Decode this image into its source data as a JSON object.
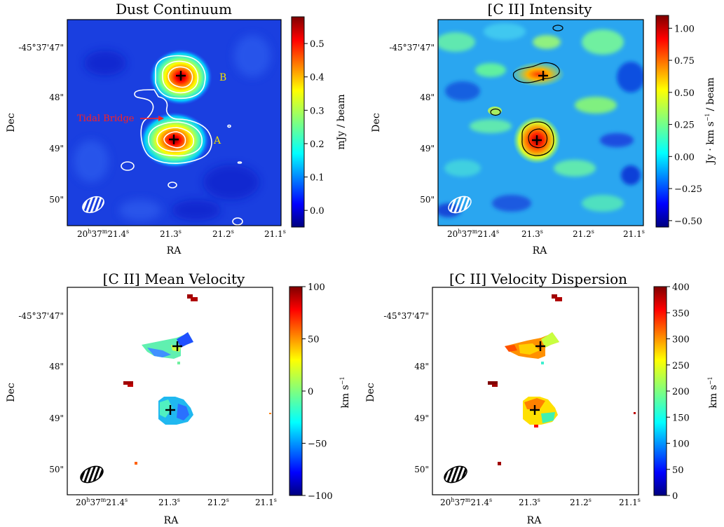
{
  "chart_data": [
    {
      "type": "heatmap",
      "title": "Dust Continuum",
      "xlabel": "RA",
      "ylabel": "Dec",
      "cbar_label": "mJy / beam",
      "cbar_range": [
        -0.05,
        0.58
      ],
      "cbar_ticks": [
        "0.5",
        "0.4",
        "0.3",
        "0.2",
        "0.1",
        "0.0"
      ],
      "cbar_tick_values": [
        0.5,
        0.4,
        0.3,
        0.2,
        0.1,
        0.0
      ],
      "dec_ticks": [
        "-45°37'47\"",
        "48\"",
        "49\"",
        "50\""
      ],
      "ra_ticks": [
        {
          "h": "20",
          "hs": "h",
          "m": "37",
          "ms": "m",
          "s": "21.4",
          "ss": "s"
        },
        {
          "s": "21.3",
          "ss": "s"
        },
        {
          "s": "21.2",
          "ss": "s"
        },
        {
          "s": "21.1",
          "ss": "s"
        }
      ],
      "annotations": [
        {
          "text": "B",
          "color": "#f0e000"
        },
        {
          "text": "A",
          "color": "#f0e000"
        },
        {
          "text": "Tidal Bridge",
          "color": "#ff2020"
        }
      ],
      "sources": [
        {
          "label": "B",
          "ra": "21.27",
          "dec": "47.6\"",
          "peak": 0.55
        },
        {
          "label": "A",
          "ra": "21.28",
          "dec": "48.8\"",
          "peak": 0.58
        }
      ]
    },
    {
      "type": "heatmap",
      "title": "[C II] Intensity",
      "xlabel": "RA",
      "ylabel": "Dec",
      "cbar_label": "Jy · km s",
      "cbar_label_sup": "−1",
      "cbar_label_tail": "/ beam",
      "cbar_range": [
        -0.55,
        1.1
      ],
      "cbar_ticks": [
        "1.00",
        "0.75",
        "0.50",
        "0.25",
        "0.00",
        "−0.25",
        "−0.50"
      ],
      "cbar_tick_values": [
        1.0,
        0.75,
        0.5,
        0.25,
        0.0,
        -0.25,
        -0.5
      ],
      "dec_ticks": [
        "-45°37'47\"",
        "48\"",
        "49\"",
        "50\""
      ],
      "ra_ticks": [
        {
          "h": "20",
          "hs": "h",
          "m": "37",
          "ms": "m",
          "s": "21.4",
          "ss": "s"
        },
        {
          "s": "21.3",
          "ss": "s"
        },
        {
          "s": "21.2",
          "ss": "s"
        },
        {
          "s": "21.1",
          "ss": "s"
        }
      ]
    },
    {
      "type": "heatmap",
      "title": "[C II] Mean Velocity",
      "xlabel": "RA",
      "ylabel": "Dec",
      "cbar_label": "km s",
      "cbar_label_sup": "−1",
      "cbar_range": [
        -100,
        100
      ],
      "cbar_ticks": [
        "100",
        "50",
        "0",
        "−50",
        "−100"
      ],
      "cbar_tick_values": [
        100,
        50,
        0,
        -50,
        -100
      ],
      "dec_ticks": [
        "-45°37'47\"",
        "48\"",
        "49\"",
        "50\""
      ],
      "ra_ticks": [
        {
          "h": "20",
          "hs": "h",
          "m": "37",
          "ms": "m",
          "s": "21.4",
          "ss": "s"
        },
        {
          "s": "21.3",
          "ss": "s"
        },
        {
          "s": "21.2",
          "ss": "s"
        },
        {
          "s": "21.1",
          "ss": "s"
        }
      ]
    },
    {
      "type": "heatmap",
      "title": "[C II] Velocity Dispersion",
      "xlabel": "RA",
      "ylabel": "Dec",
      "cbar_label": "km s",
      "cbar_label_sup": "−1",
      "cbar_range": [
        0,
        400
      ],
      "cbar_ticks": [
        "400",
        "350",
        "300",
        "250",
        "200",
        "150",
        "100",
        "50",
        "0"
      ],
      "cbar_tick_values": [
        400,
        350,
        300,
        250,
        200,
        150,
        100,
        50,
        0
      ],
      "dec_ticks": [
        "-45°37'47\"",
        "48\"",
        "49\"",
        "50\""
      ],
      "ra_ticks": [
        {
          "h": "20",
          "hs": "h",
          "m": "37",
          "ms": "m",
          "s": "21.4",
          "ss": "s"
        },
        {
          "s": "21.3",
          "ss": "s"
        },
        {
          "s": "21.2",
          "ss": "s"
        },
        {
          "s": "21.1",
          "ss": "s"
        }
      ]
    }
  ],
  "colors": {
    "jet": [
      "#00007f",
      "#0000ff",
      "#007fff",
      "#00ffff",
      "#7fff7f",
      "#ffff00",
      "#ff7f00",
      "#ff0000",
      "#7f0000"
    ],
    "contour_white": "#ffffff",
    "contour_black": "#000000",
    "label_yellow": "#f0e000",
    "label_red": "#ff2020"
  }
}
